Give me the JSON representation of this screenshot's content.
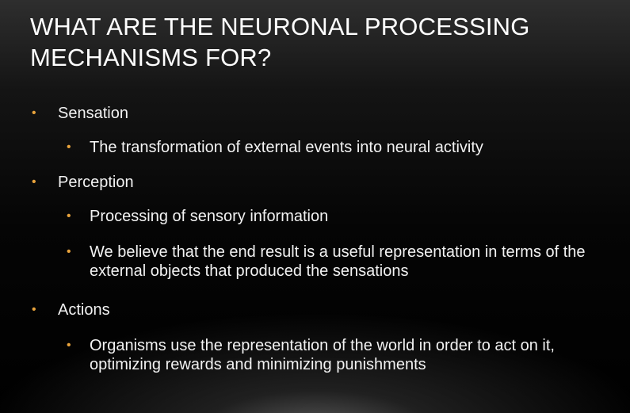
{
  "slide": {
    "title_line1": "WHAT ARE THE NEURONAL PROCESSING",
    "title_line2": "MECHANISMS FOR?",
    "bullet_glyph": "•",
    "accent_color": "#e8a33c",
    "items": [
      {
        "level": 1,
        "text": "Sensation"
      },
      {
        "level": 2,
        "text": "The transformation of external events into neural activity"
      },
      {
        "level": 1,
        "text": "Perception"
      },
      {
        "level": 2,
        "text": "Processing of sensory information"
      },
      {
        "level": 2,
        "line1": "We believe that the end result is a useful representation in terms of the",
        "line2": "external objects that produced the sensations"
      },
      {
        "level": 1,
        "text": "Actions"
      },
      {
        "level": 2,
        "line1": "Organisms use the representation of the world in order to act on it,",
        "line2": "optimizing rewards and minimizing punishments"
      }
    ]
  }
}
